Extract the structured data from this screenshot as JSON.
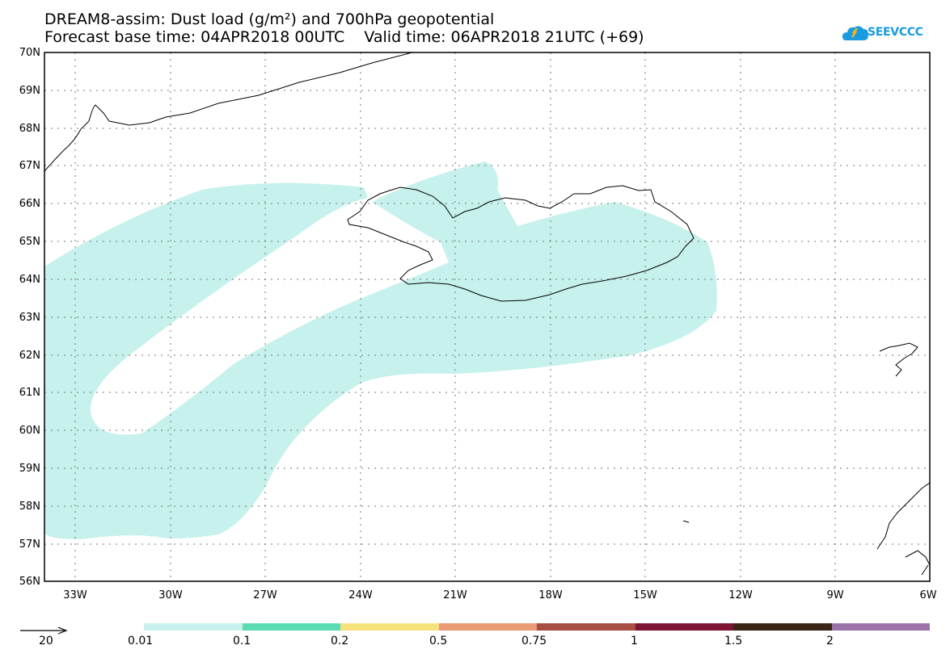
{
  "header": {
    "line1": "DREAM8-assim: Dust load (g/m²) and 700hPa geopotential",
    "line2": "Forecast base time: 04APR2018 00UTC    Valid time: 06APR2018 21UTC (+69)",
    "logo_text": "SEEVCCC"
  },
  "axes": {
    "lat_labels": [
      "70N",
      "69N",
      "68N",
      "67N",
      "66N",
      "65N",
      "64N",
      "63N",
      "62N",
      "61N",
      "60N",
      "59N",
      "58N",
      "57N",
      "56N"
    ],
    "lon_labels": [
      "33W",
      "30W",
      "27W",
      "24W",
      "21W",
      "18W",
      "15W",
      "12W",
      "9W",
      "6W"
    ]
  },
  "legend": {
    "colors": [
      "#c6f1ec",
      "#5bdcb5",
      "#f5e27a",
      "#e99b73",
      "#a84e42",
      "#7d1433",
      "#3a2516",
      "#9b73a8"
    ],
    "labels": [
      "0.01",
      "0.1",
      "0.2",
      "0.5",
      "0.75",
      "1",
      "1.5",
      "2"
    ],
    "vector_label": "20"
  },
  "colors": {
    "dust_low": "#c6f1ec",
    "coast": "#000000",
    "grid": "#555555"
  }
}
